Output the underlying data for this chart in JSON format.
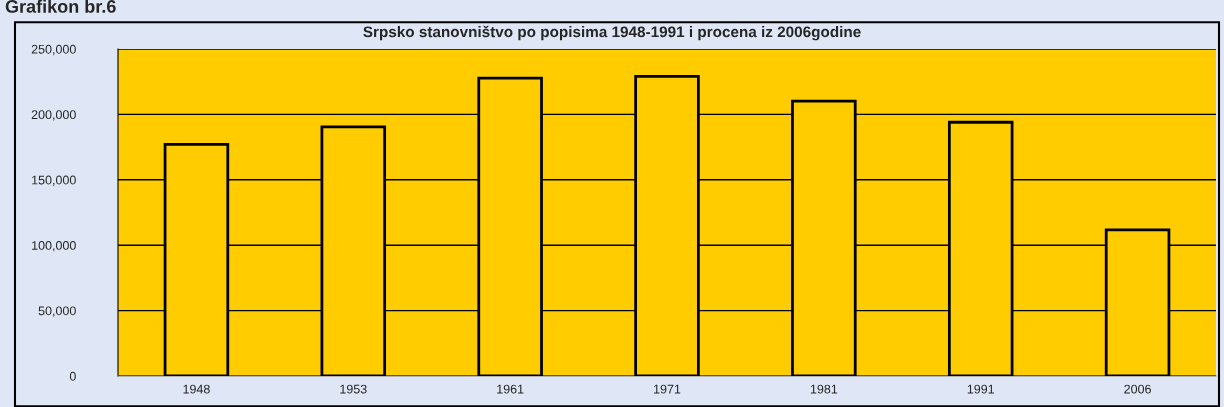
{
  "chart_data": {
    "type": "bar",
    "title": "Srpsko stanovništvo po popisima 1948-1991 i procena iz 2006godine",
    "annotations": [
      "Grafikon br.6"
    ],
    "categories": [
      "1948",
      "1953",
      "1961",
      "1971",
      "1981",
      "1991",
      "2006"
    ],
    "values": [
      177000,
      190400,
      227700,
      229000,
      210200,
      194000,
      111700
    ],
    "color": "#ffcc00",
    "ylim": [
      0,
      250000
    ],
    "yticks": [
      {
        "value": 0,
        "label": "0"
      },
      {
        "value": 50000,
        "label": "50,000"
      },
      {
        "value": 100000,
        "label": "100,000"
      },
      {
        "value": 150000,
        "label": "150,000"
      },
      {
        "value": 200000,
        "label": "200,000"
      },
      {
        "value": 250000,
        "label": "250,000"
      }
    ],
    "grid": "y"
  }
}
